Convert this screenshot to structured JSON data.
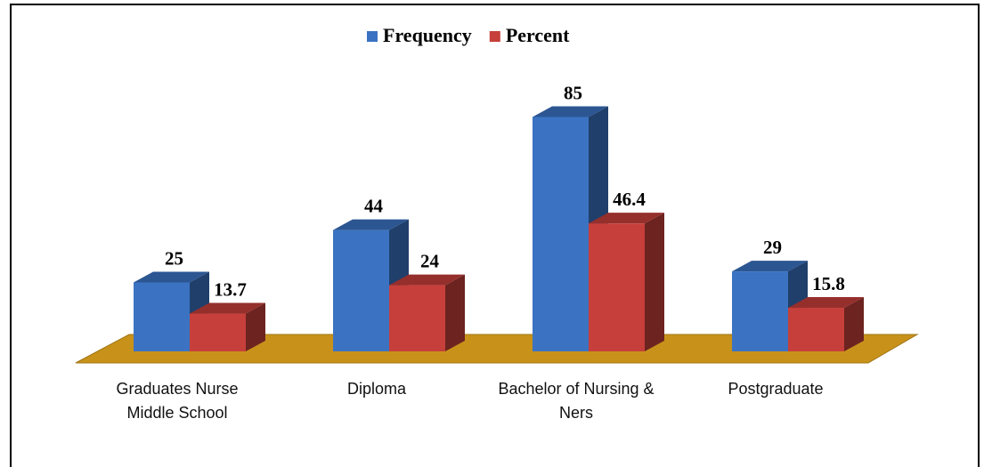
{
  "chart_data": {
    "type": "bar3d",
    "categories": [
      "Graduates Nurse Middle School",
      "Diploma",
      "Bachelor of Nursing & Ners",
      "Postgraduate"
    ],
    "series": [
      {
        "name": "Frequency",
        "color": "#3b73c2",
        "values": [
          25,
          44,
          85,
          29
        ]
      },
      {
        "name": "Percent",
        "color": "#c63f3a",
        "values": [
          13.7,
          24,
          46.4,
          15.8
        ]
      }
    ],
    "floor_color": "#c8921a"
  }
}
